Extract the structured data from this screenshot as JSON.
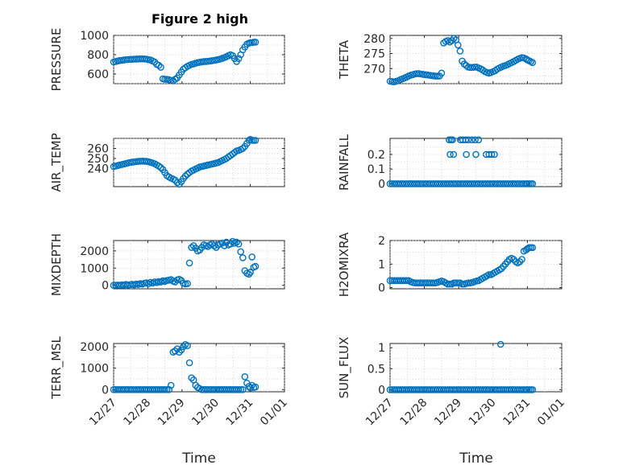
{
  "figure": {
    "title": "Figure 2 high",
    "xlabel": "Time",
    "x_ticks": [
      "12/27",
      "12/28",
      "12/29",
      "12/30",
      "12/31",
      "01/01"
    ],
    "marker_color": "#0072BD"
  },
  "chart_data": [
    {
      "type": "scatter",
      "ylabel": "PRESSURE",
      "ylim": [
        500,
        1000
      ],
      "y_ticks": [
        "600",
        "800",
        "1000"
      ],
      "grid": true,
      "x": [
        0.0,
        0.06,
        0.12,
        0.18,
        0.24,
        0.3,
        0.36,
        0.42,
        0.48,
        0.54,
        0.6,
        0.66,
        0.72,
        0.78,
        0.84,
        0.9,
        0.96,
        1.02,
        1.08,
        1.14,
        1.2,
        1.26,
        1.32,
        1.38,
        1.44,
        1.5,
        1.56,
        1.62,
        1.68,
        1.74,
        1.8,
        1.86,
        1.92,
        1.98,
        2.04,
        2.1,
        2.16,
        2.22,
        2.28,
        2.34,
        2.4,
        2.46,
        2.52,
        2.58,
        2.64,
        2.7,
        2.76,
        2.82,
        2.88,
        2.94,
        3.0,
        3.06,
        3.12,
        3.18,
        3.24,
        3.3,
        3.36,
        3.42,
        3.48,
        3.54,
        3.6,
        3.66,
        3.72,
        3.78,
        3.84,
        3.9,
        3.96,
        4.0,
        4.05,
        4.1,
        4.15
      ],
      "y": [
        725,
        730,
        735,
        740,
        742,
        745,
        748,
        750,
        752,
        752,
        754,
        755,
        756,
        757,
        757,
        756,
        754,
        748,
        745,
        735,
        725,
        700,
        690,
        670,
        550,
        545,
        545,
        540,
        535,
        530,
        545,
        560,
        590,
        620,
        650,
        665,
        680,
        690,
        700,
        705,
        712,
        718,
        722,
        726,
        728,
        730,
        732,
        735,
        738,
        742,
        745,
        750,
        755,
        762,
        770,
        780,
        790,
        800,
        790,
        760,
        730,
        760,
        800,
        850,
        880,
        910,
        920,
        925,
        925,
        930,
        930
      ]
    },
    {
      "type": "scatter",
      "ylabel": "THETA",
      "ylim": [
        265,
        281
      ],
      "y_ticks": [
        "270",
        "275",
        "280"
      ],
      "grid": true,
      "x": [
        0.0,
        0.06,
        0.12,
        0.18,
        0.24,
        0.3,
        0.36,
        0.42,
        0.48,
        0.54,
        0.6,
        0.66,
        0.72,
        0.78,
        0.84,
        0.9,
        0.96,
        1.02,
        1.08,
        1.14,
        1.2,
        1.26,
        1.32,
        1.38,
        1.44,
        1.5,
        1.56,
        1.62,
        1.68,
        1.74,
        1.8,
        1.86,
        1.92,
        1.98,
        2.04,
        2.1,
        2.16,
        2.22,
        2.28,
        2.34,
        2.4,
        2.46,
        2.52,
        2.58,
        2.64,
        2.7,
        2.76,
        2.82,
        2.88,
        2.94,
        3.0,
        3.06,
        3.12,
        3.18,
        3.24,
        3.3,
        3.36,
        3.42,
        3.48,
        3.54,
        3.6,
        3.66,
        3.72,
        3.78,
        3.84,
        3.9,
        3.96,
        4.0,
        4.05,
        4.1,
        4.15
      ],
      "y": [
        265.8,
        265.7,
        265.6,
        265.8,
        266.0,
        266.3,
        266.6,
        266.9,
        267.2,
        267.5,
        267.8,
        268.0,
        268.2,
        268.3,
        268.3,
        268.2,
        268.1,
        268.0,
        267.9,
        267.8,
        267.7,
        267.6,
        267.5,
        267.5,
        267.5,
        268.5,
        278.5,
        279.0,
        279.3,
        278.8,
        279.3,
        280.0,
        279.5,
        277.8,
        275.8,
        272.5,
        271.5,
        271.0,
        270.5,
        270.4,
        270.4,
        270.5,
        270.5,
        270.2,
        269.9,
        269.5,
        269.0,
        268.7,
        268.5,
        268.7,
        269.0,
        269.3,
        269.8,
        270.2,
        270.5,
        270.8,
        271.0,
        271.3,
        271.7,
        272.0,
        272.3,
        272.7,
        273.1,
        273.4,
        273.6,
        273.5,
        273.2,
        272.9,
        272.6,
        272.3,
        272.0
      ]
    },
    {
      "type": "scatter",
      "ylabel": "AIR_TEMP",
      "ylim": [
        222,
        270
      ],
      "y_ticks": [
        "240",
        "250",
        "260"
      ],
      "grid": true,
      "x": [
        0.0,
        0.06,
        0.12,
        0.18,
        0.24,
        0.3,
        0.36,
        0.42,
        0.48,
        0.54,
        0.6,
        0.66,
        0.72,
        0.78,
        0.84,
        0.9,
        0.96,
        1.02,
        1.08,
        1.14,
        1.2,
        1.26,
        1.32,
        1.38,
        1.44,
        1.5,
        1.56,
        1.62,
        1.68,
        1.74,
        1.8,
        1.86,
        1.92,
        1.98,
        2.04,
        2.1,
        2.16,
        2.22,
        2.28,
        2.34,
        2.4,
        2.46,
        2.52,
        2.58,
        2.64,
        2.7,
        2.76,
        2.82,
        2.88,
        2.94,
        3.0,
        3.06,
        3.12,
        3.18,
        3.24,
        3.3,
        3.36,
        3.42,
        3.48,
        3.54,
        3.6,
        3.66,
        3.72,
        3.78,
        3.84,
        3.9,
        3.96,
        4.0,
        4.05,
        4.1,
        4.15
      ],
      "y": [
        242,
        242.5,
        243,
        243.5,
        244,
        244.5,
        245,
        245.5,
        246,
        246.3,
        246.6,
        246.9,
        247.1,
        247.3,
        247.4,
        247.3,
        247.1,
        246.7,
        246.2,
        245.5,
        244.7,
        243.7,
        242.5,
        241,
        239,
        236,
        233,
        231.5,
        230.5,
        229.5,
        228.5,
        226,
        224.5,
        227,
        230,
        232.5,
        234.5,
        236,
        237.5,
        238.5,
        239.5,
        240.5,
        241.5,
        242,
        242.5,
        243,
        243.5,
        244,
        244.5,
        245,
        245.5,
        246,
        247,
        248,
        249,
        250,
        251.5,
        253,
        254.5,
        256,
        257.5,
        258,
        259,
        260,
        262,
        265,
        268,
        269,
        268,
        268,
        268
      ]
    },
    {
      "type": "scatter",
      "ylabel": "RAINFALL",
      "ylim": [
        -0.02,
        0.31
      ],
      "y_ticks": [
        "0",
        "0.1",
        "0.2"
      ],
      "grid": true,
      "x": [
        0.0,
        0.06,
        0.12,
        0.18,
        0.24,
        0.3,
        0.36,
        0.42,
        0.48,
        0.54,
        0.6,
        0.66,
        0.72,
        0.78,
        0.84,
        0.9,
        0.96,
        1.02,
        1.08,
        1.14,
        1.2,
        1.26,
        1.32,
        1.38,
        1.44,
        1.5,
        1.56,
        1.62,
        1.68,
        1.74,
        1.8,
        1.86,
        1.92,
        1.98,
        2.04,
        2.1,
        2.16,
        2.22,
        2.28,
        2.34,
        2.4,
        2.46,
        2.52,
        2.58,
        2.64,
        2.7,
        2.76,
        2.82,
        2.88,
        2.94,
        3.0,
        3.06,
        3.12,
        3.18,
        3.24,
        3.3,
        3.36,
        3.42,
        3.48,
        3.54,
        3.6,
        3.66,
        3.72,
        3.78,
        3.84,
        3.9,
        3.96,
        4.0,
        4.05,
        4.1,
        4.15,
        1.72,
        1.78,
        1.82,
        2.05,
        2.12,
        2.2,
        2.28,
        2.38,
        2.48,
        2.58,
        1.75,
        1.85,
        2.22,
        2.5,
        2.8,
        2.88,
        2.96,
        3.04
      ],
      "y": [
        0,
        0,
        0,
        0,
        0,
        0,
        0,
        0,
        0,
        0,
        0,
        0,
        0,
        0,
        0,
        0,
        0,
        0,
        0,
        0,
        0,
        0,
        0,
        0,
        0,
        0,
        0,
        0,
        0,
        0,
        0,
        0,
        0,
        0,
        0,
        0,
        0,
        0,
        0,
        0,
        0,
        0,
        0,
        0,
        0,
        0,
        0,
        0,
        0,
        0,
        0,
        0,
        0,
        0,
        0,
        0,
        0,
        0,
        0,
        0,
        0,
        0,
        0,
        0,
        0,
        0,
        0,
        0,
        0,
        0,
        0,
        0.3,
        0.3,
        0.3,
        0.3,
        0.3,
        0.3,
        0.3,
        0.3,
        0.3,
        0.3,
        0.2,
        0.2,
        0.2,
        0.2,
        0.2,
        0.2,
        0.2,
        0.2
      ]
    },
    {
      "type": "scatter",
      "ylabel": "MIXDEPTH",
      "ylim": [
        -200,
        2600
      ],
      "y_ticks": [
        "0",
        "1000",
        "2000"
      ],
      "grid": true,
      "x": [
        0.0,
        0.06,
        0.12,
        0.18,
        0.24,
        0.3,
        0.36,
        0.42,
        0.48,
        0.54,
        0.6,
        0.66,
        0.72,
        0.78,
        0.84,
        0.9,
        0.96,
        1.02,
        1.08,
        1.14,
        1.2,
        1.26,
        1.32,
        1.38,
        1.44,
        1.5,
        1.56,
        1.62,
        1.68,
        1.74,
        1.8,
        1.86,
        1.92,
        1.98,
        2.04,
        2.1,
        2.16,
        2.22,
        2.28,
        2.34,
        2.4,
        2.46,
        2.52,
        2.58,
        2.64,
        2.7,
        2.76,
        2.82,
        2.88,
        2.94,
        3.0,
        3.06,
        3.12,
        3.18,
        3.24,
        3.3,
        3.36,
        3.42,
        3.48,
        3.54,
        3.6,
        3.66,
        3.72,
        3.78,
        3.84,
        3.9,
        3.96,
        4.0,
        4.05,
        4.1,
        4.15
      ],
      "y": [
        0,
        10,
        20,
        0,
        30,
        10,
        50,
        20,
        40,
        60,
        30,
        80,
        50,
        100,
        70,
        120,
        150,
        90,
        180,
        130,
        200,
        160,
        220,
        190,
        260,
        230,
        280,
        300,
        330,
        250,
        200,
        320,
        350,
        280,
        120,
        80,
        100,
        1300,
        2200,
        2300,
        2150,
        2000,
        2050,
        2200,
        2350,
        2300,
        2250,
        2350,
        2400,
        2300,
        2200,
        2350,
        2400,
        2450,
        2300,
        2500,
        2350,
        2400,
        2550,
        2450,
        2500,
        2400,
        1950,
        1600,
        850,
        700,
        650,
        750,
        1650,
        1050,
        1100
      ]
    },
    {
      "type": "scatter",
      "ylabel": "H2OMIXRA",
      "ylim": [
        -0.05,
        2.0
      ],
      "y_ticks": [
        "0",
        "1",
        "2"
      ],
      "grid": true,
      "x": [
        0.0,
        0.06,
        0.12,
        0.18,
        0.24,
        0.3,
        0.36,
        0.42,
        0.48,
        0.54,
        0.6,
        0.66,
        0.72,
        0.78,
        0.84,
        0.9,
        0.96,
        1.02,
        1.08,
        1.14,
        1.2,
        1.26,
        1.32,
        1.38,
        1.44,
        1.5,
        1.56,
        1.62,
        1.68,
        1.74,
        1.8,
        1.86,
        1.92,
        1.98,
        2.04,
        2.1,
        2.16,
        2.22,
        2.28,
        2.34,
        2.4,
        2.46,
        2.52,
        2.58,
        2.64,
        2.7,
        2.76,
        2.82,
        2.88,
        2.94,
        3.0,
        3.06,
        3.12,
        3.18,
        3.24,
        3.3,
        3.36,
        3.42,
        3.48,
        3.54,
        3.6,
        3.66,
        3.72,
        3.78,
        3.84,
        3.9,
        3.96,
        4.0,
        4.05,
        4.1,
        4.15
      ],
      "y": [
        0.3,
        0.3,
        0.3,
        0.3,
        0.3,
        0.3,
        0.3,
        0.3,
        0.3,
        0.3,
        0.25,
        0.22,
        0.2,
        0.2,
        0.2,
        0.2,
        0.2,
        0.2,
        0.2,
        0.2,
        0.2,
        0.2,
        0.2,
        0.22,
        0.25,
        0.28,
        0.25,
        0.2,
        0.15,
        0.15,
        0.15,
        0.2,
        0.2,
        0.2,
        0.2,
        0.15,
        0.15,
        0.18,
        0.2,
        0.2,
        0.22,
        0.25,
        0.28,
        0.3,
        0.35,
        0.4,
        0.45,
        0.5,
        0.55,
        0.55,
        0.6,
        0.65,
        0.7,
        0.75,
        0.8,
        0.9,
        1.0,
        1.1,
        1.2,
        1.25,
        1.2,
        1.1,
        1.05,
        1.1,
        1.2,
        1.55,
        1.6,
        1.65,
        1.7,
        1.7,
        1.7
      ]
    },
    {
      "type": "scatter",
      "ylabel": "TERR_MSL",
      "ylim": [
        -100,
        2150
      ],
      "y_ticks": [
        "0",
        "1000",
        "2000"
      ],
      "grid": true,
      "x": [
        0.0,
        0.06,
        0.12,
        0.18,
        0.24,
        0.3,
        0.36,
        0.42,
        0.48,
        0.54,
        0.6,
        0.66,
        0.72,
        0.78,
        0.84,
        0.9,
        0.96,
        1.02,
        1.08,
        1.14,
        1.2,
        1.26,
        1.32,
        1.38,
        1.44,
        1.5,
        1.56,
        1.62,
        1.68,
        1.74,
        1.8,
        1.86,
        1.92,
        1.98,
        2.04,
        2.1,
        2.16,
        2.22,
        2.28,
        2.34,
        2.4,
        2.46,
        2.52,
        2.58,
        2.64,
        2.7,
        2.76,
        2.82,
        2.88,
        2.94,
        3.0,
        3.06,
        3.12,
        3.18,
        3.24,
        3.3,
        3.36,
        3.42,
        3.48,
        3.54,
        3.6,
        3.66,
        3.72,
        3.78,
        3.84,
        3.9,
        3.96,
        4.0,
        4.05,
        4.1,
        4.15
      ],
      "y": [
        0,
        0,
        0,
        0,
        0,
        0,
        0,
        0,
        0,
        0,
        0,
        0,
        0,
        0,
        0,
        0,
        0,
        0,
        0,
        0,
        0,
        0,
        0,
        0,
        0,
        0,
        0,
        0,
        200,
        1750,
        1800,
        1900,
        1750,
        1850,
        2000,
        2100,
        2050,
        1250,
        550,
        450,
        200,
        100,
        50,
        0,
        0,
        0,
        0,
        0,
        0,
        0,
        0,
        0,
        0,
        0,
        0,
        0,
        0,
        0,
        0,
        0,
        0,
        0,
        0,
        0,
        600,
        300,
        150,
        80,
        200,
        100,
        120
      ]
    },
    {
      "type": "scatter",
      "ylabel": "SUN_FLUX",
      "ylim": [
        -0.05,
        1.1
      ],
      "y_ticks": [
        "0",
        "0.5",
        "1"
      ],
      "grid": true,
      "x": [
        0.0,
        0.06,
        0.12,
        0.18,
        0.24,
        0.3,
        0.36,
        0.42,
        0.48,
        0.54,
        0.6,
        0.66,
        0.72,
        0.78,
        0.84,
        0.9,
        0.96,
        1.02,
        1.08,
        1.14,
        1.2,
        1.26,
        1.32,
        1.38,
        1.44,
        1.5,
        1.56,
        1.62,
        1.68,
        1.74,
        1.8,
        1.86,
        1.92,
        1.98,
        2.04,
        2.1,
        2.16,
        2.22,
        2.28,
        2.34,
        2.4,
        2.46,
        2.52,
        2.58,
        2.64,
        2.7,
        2.76,
        2.82,
        2.88,
        2.94,
        3.0,
        3.06,
        3.12,
        3.18,
        3.24,
        3.3,
        3.36,
        3.42,
        3.48,
        3.54,
        3.6,
        3.66,
        3.72,
        3.78,
        3.84,
        3.9,
        3.96,
        4.0,
        4.05,
        4.1,
        4.15,
        3.22
      ],
      "y": [
        0,
        0,
        0,
        0,
        0,
        0,
        0,
        0,
        0,
        0,
        0,
        0,
        0,
        0,
        0,
        0,
        0,
        0,
        0,
        0,
        0,
        0,
        0,
        0,
        0,
        0,
        0,
        0,
        0,
        0,
        0,
        0,
        0,
        0,
        0,
        0,
        0,
        0,
        0,
        0,
        0,
        0,
        0,
        0,
        0,
        0,
        0,
        0,
        0,
        0,
        0,
        0,
        0,
        0,
        0,
        0,
        0,
        0,
        0,
        0,
        0,
        0,
        0,
        0,
        0,
        0,
        0,
        0,
        0,
        0,
        0,
        1.08
      ]
    }
  ]
}
